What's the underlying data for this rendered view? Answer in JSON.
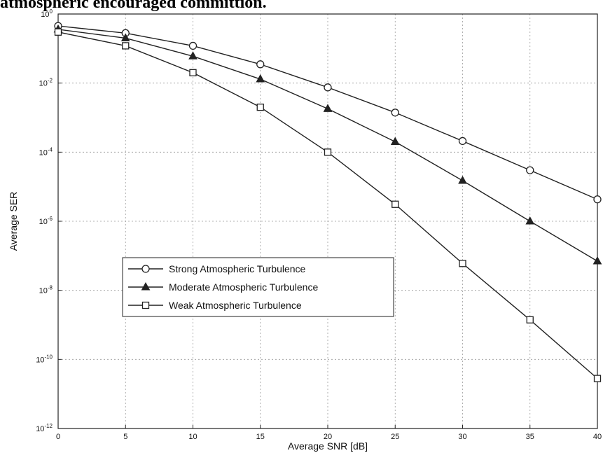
{
  "caption": "atmospheric encouraged committion.",
  "chart_data": {
    "type": "line",
    "xlabel": "Average SNR [dB]",
    "ylabel": "Average SER",
    "x": [
      0,
      5,
      10,
      15,
      20,
      25,
      30,
      35,
      40
    ],
    "xlim": [
      0,
      40
    ],
    "ylim_log10": [
      -12,
      0
    ],
    "log_y": true,
    "grid": true,
    "x_ticks": [
      "0",
      "5",
      "10",
      "15",
      "20",
      "25",
      "30",
      "35",
      "40"
    ],
    "y_ticks": [
      {
        "base": "10",
        "exp": "0"
      },
      {
        "base": "10",
        "exp": "-2"
      },
      {
        "base": "10",
        "exp": "-4"
      },
      {
        "base": "10",
        "exp": "-6"
      },
      {
        "base": "10",
        "exp": "-8"
      },
      {
        "base": "10",
        "exp": "-10"
      },
      {
        "base": "10",
        "exp": "-12"
      }
    ],
    "legend_position": "center-left",
    "series": [
      {
        "name": "Strong Atmospheric Turbulence",
        "marker": "circle",
        "values": [
          0.45,
          0.28,
          0.12,
          0.035,
          0.0075,
          0.0014,
          0.00021,
          3e-05,
          4.3e-06
        ]
      },
      {
        "name": "Moderate Atmospheric Turbulence",
        "marker": "triangle",
        "values": [
          0.36,
          0.2,
          0.06,
          0.013,
          0.0018,
          0.0002,
          1.5e-05,
          1e-06,
          7e-08
        ]
      },
      {
        "name": "Weak Atmospheric Turbulence",
        "marker": "square",
        "values": [
          0.3,
          0.12,
          0.02,
          0.002,
          0.0001,
          3.1e-06,
          6e-08,
          1.4e-09,
          2.8e-11
        ]
      }
    ]
  }
}
